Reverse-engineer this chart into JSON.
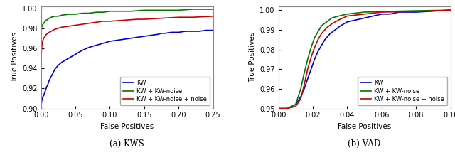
{
  "kws": {
    "blue": {
      "x": [
        0.0,
        0.001,
        0.002,
        0.003,
        0.004,
        0.005,
        0.006,
        0.007,
        0.008,
        0.01,
        0.012,
        0.015,
        0.018,
        0.02,
        0.025,
        0.03,
        0.035,
        0.04,
        0.045,
        0.05,
        0.06,
        0.07,
        0.08,
        0.09,
        0.1,
        0.11,
        0.12,
        0.13,
        0.14,
        0.15,
        0.16,
        0.17,
        0.175,
        0.18,
        0.19,
        0.2,
        0.21,
        0.22,
        0.23,
        0.24,
        0.25
      ],
      "y": [
        0.9,
        0.907,
        0.91,
        0.912,
        0.913,
        0.915,
        0.917,
        0.919,
        0.921,
        0.924,
        0.928,
        0.932,
        0.936,
        0.939,
        0.943,
        0.946,
        0.948,
        0.95,
        0.952,
        0.954,
        0.958,
        0.961,
        0.963,
        0.965,
        0.967,
        0.968,
        0.969,
        0.97,
        0.971,
        0.972,
        0.973,
        0.974,
        0.975,
        0.975,
        0.976,
        0.976,
        0.977,
        0.977,
        0.977,
        0.978,
        0.978
      ]
    },
    "green": {
      "x": [
        0.0,
        0.0005,
        0.001,
        0.002,
        0.003,
        0.004,
        0.005,
        0.006,
        0.007,
        0.008,
        0.01,
        0.012,
        0.015,
        0.02,
        0.025,
        0.03,
        0.04,
        0.05,
        0.06,
        0.07,
        0.08,
        0.09,
        0.1,
        0.13,
        0.15,
        0.175,
        0.2,
        0.22,
        0.25
      ],
      "y": [
        0.974,
        0.979,
        0.981,
        0.983,
        0.984,
        0.985,
        0.986,
        0.987,
        0.988,
        0.988,
        0.989,
        0.99,
        0.991,
        0.992,
        0.992,
        0.993,
        0.994,
        0.994,
        0.995,
        0.995,
        0.996,
        0.996,
        0.997,
        0.997,
        0.998,
        0.998,
        0.998,
        0.999,
        0.999
      ]
    },
    "red": {
      "x": [
        0.0,
        0.001,
        0.002,
        0.003,
        0.004,
        0.005,
        0.006,
        0.007,
        0.008,
        0.01,
        0.012,
        0.015,
        0.02,
        0.025,
        0.03,
        0.04,
        0.05,
        0.06,
        0.07,
        0.08,
        0.09,
        0.1,
        0.12,
        0.14,
        0.15,
        0.175,
        0.2,
        0.22,
        0.25
      ],
      "y": [
        0.948,
        0.96,
        0.966,
        0.968,
        0.97,
        0.971,
        0.972,
        0.973,
        0.974,
        0.975,
        0.976,
        0.977,
        0.979,
        0.98,
        0.981,
        0.982,
        0.983,
        0.984,
        0.985,
        0.986,
        0.987,
        0.987,
        0.988,
        0.989,
        0.989,
        0.99,
        0.991,
        0.991,
        0.992
      ]
    },
    "xlim": [
      0.0,
      0.25
    ],
    "ylim": [
      0.9,
      1.002
    ],
    "xticks": [
      0.0,
      0.05,
      0.1,
      0.15,
      0.2,
      0.25
    ],
    "yticks": [
      0.9,
      0.92,
      0.94,
      0.96,
      0.98,
      1.0
    ],
    "xlabel": "False Positives",
    "ylabel": "True Positives",
    "caption": "(a) KWS"
  },
  "vad": {
    "blue": {
      "x": [
        0.0,
        0.005,
        0.01,
        0.013,
        0.015,
        0.017,
        0.019,
        0.021,
        0.023,
        0.025,
        0.027,
        0.03,
        0.033,
        0.036,
        0.04,
        0.045,
        0.05,
        0.055,
        0.06,
        0.065,
        0.07,
        0.08,
        0.09,
        0.1
      ],
      "y": [
        0.95,
        0.95,
        0.952,
        0.956,
        0.96,
        0.965,
        0.97,
        0.975,
        0.979,
        0.982,
        0.985,
        0.988,
        0.99,
        0.992,
        0.994,
        0.995,
        0.996,
        0.997,
        0.998,
        0.998,
        0.999,
        0.999,
        0.9995,
        1.0
      ]
    },
    "green": {
      "x": [
        0.0,
        0.005,
        0.01,
        0.013,
        0.015,
        0.017,
        0.019,
        0.021,
        0.023,
        0.025,
        0.028,
        0.031,
        0.035,
        0.04,
        0.05,
        0.06,
        0.08,
        0.1
      ],
      "y": [
        0.95,
        0.95,
        0.952,
        0.96,
        0.968,
        0.975,
        0.981,
        0.986,
        0.989,
        0.992,
        0.994,
        0.996,
        0.997,
        0.998,
        0.999,
        0.9993,
        0.9997,
        1.0
      ]
    },
    "red": {
      "x": [
        0.0,
        0.005,
        0.01,
        0.013,
        0.015,
        0.017,
        0.019,
        0.021,
        0.023,
        0.025,
        0.028,
        0.031,
        0.035,
        0.04,
        0.05,
        0.06,
        0.08,
        0.1
      ],
      "y": [
        0.95,
        0.95,
        0.951,
        0.955,
        0.962,
        0.97,
        0.976,
        0.981,
        0.985,
        0.988,
        0.991,
        0.993,
        0.995,
        0.997,
        0.998,
        0.999,
        0.9993,
        1.0
      ]
    },
    "xlim": [
      0.0,
      0.1
    ],
    "ylim": [
      0.95,
      1.002
    ],
    "xticks": [
      0.0,
      0.02,
      0.04,
      0.06,
      0.08,
      0.1
    ],
    "yticks": [
      0.95,
      0.96,
      0.97,
      0.98,
      0.99,
      1.0
    ],
    "xlabel": "False Positives",
    "ylabel": "True Positives",
    "caption": "(b) VAD"
  },
  "legend_labels": [
    "KW",
    "KW + KW-noise",
    "KW + KW-noise + noise"
  ],
  "colors": {
    "blue": "#0000cc",
    "green": "#007700",
    "red": "#cc0000"
  },
  "line_width": 1.2,
  "bg_color": "#ffffff"
}
